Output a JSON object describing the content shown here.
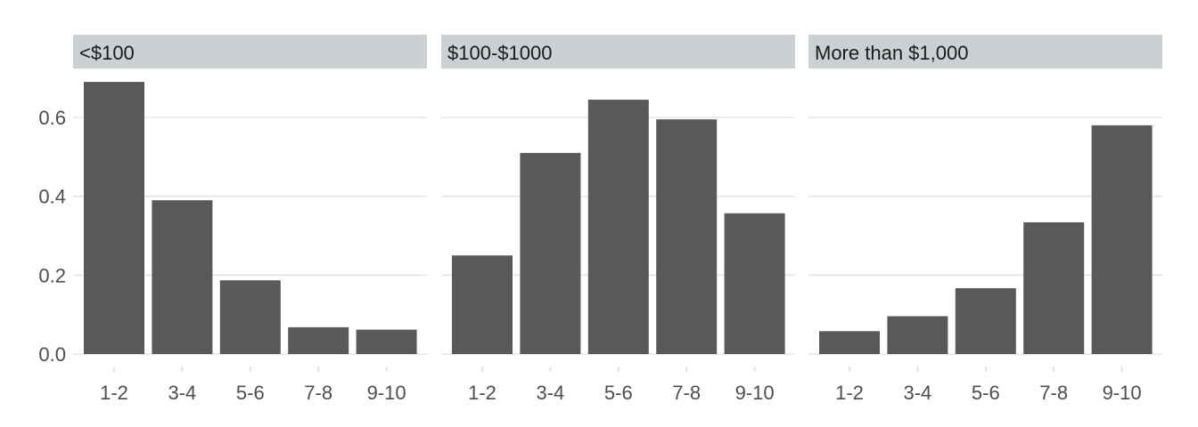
{
  "chart_data": {
    "type": "bar",
    "facets": [
      {
        "title": "<$100",
        "categories": [
          "1-2",
          "3-4",
          "5-6",
          "7-8",
          "9-10"
        ],
        "values": [
          0.69,
          0.39,
          0.187,
          0.068,
          0.062
        ]
      },
      {
        "title": "$100-$1000",
        "categories": [
          "1-2",
          "3-4",
          "5-6",
          "7-8",
          "9-10"
        ],
        "values": [
          0.25,
          0.51,
          0.645,
          0.595,
          0.357
        ]
      },
      {
        "title": "More than $1,000",
        "categories": [
          "1-2",
          "3-4",
          "5-6",
          "7-8",
          "9-10"
        ],
        "values": [
          0.058,
          0.096,
          0.167,
          0.334,
          0.58
        ]
      }
    ],
    "ylim": [
      0,
      0.7
    ],
    "yticks": [
      "0.0",
      "0.2",
      "0.4",
      "0.6"
    ],
    "ytick_values": [
      0,
      0.2,
      0.4,
      0.6
    ],
    "xlabel": "",
    "ylabel": "",
    "grid": true,
    "bar_color": "#595959",
    "strip_color": "#cbd0d3"
  }
}
